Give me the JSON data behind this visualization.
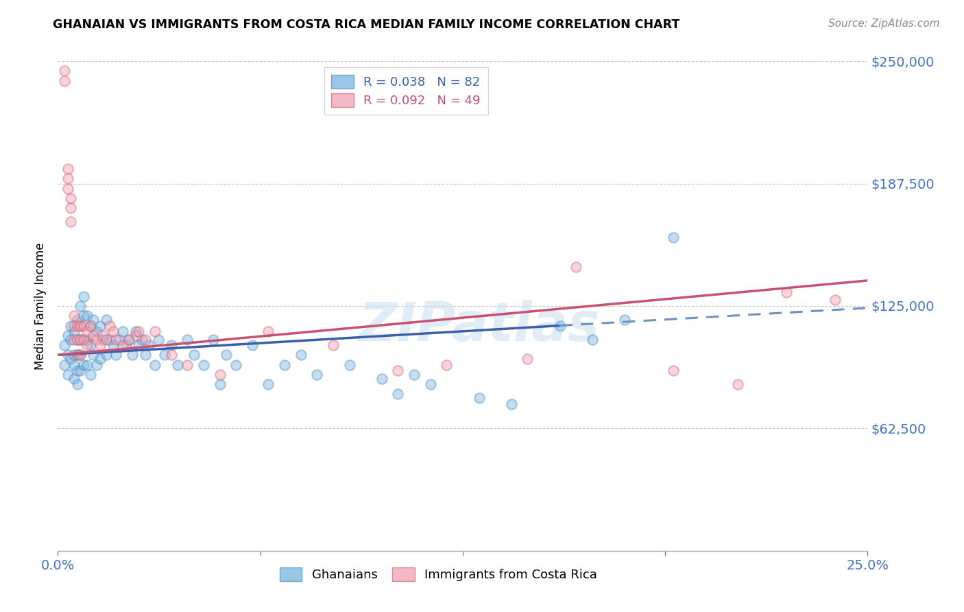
{
  "title": "GHANAIAN VS IMMIGRANTS FROM COSTA RICA MEDIAN FAMILY INCOME CORRELATION CHART",
  "source": "Source: ZipAtlas.com",
  "ylabel": "Median Family Income",
  "xlim": [
    0.0,
    0.25
  ],
  "ylim": [
    0,
    250000
  ],
  "yticks": [
    0,
    62500,
    125000,
    187500,
    250000
  ],
  "ytick_labels": [
    "",
    "$62,500",
    "$125,000",
    "$187,500",
    "$250,000"
  ],
  "background_color": "#ffffff",
  "grid_color": "#c8c8c8",
  "axis_color": "#4472c4",
  "legend_blue_label": "R = 0.038   N = 82",
  "legend_pink_label": "R = 0.092   N = 49",
  "blue_scatter_color": "#7ab5e0",
  "blue_scatter_edge": "#5590c8",
  "pink_scatter_color": "#f4a0b0",
  "pink_scatter_edge": "#d06878",
  "blue_line_color": "#3a5fad",
  "pink_line_color": "#c85070",
  "blue_dashed_color": "#7090c0",
  "scatter_size": 110,
  "scatter_alpha": 0.45,
  "scatter_linewidth": 1.5,
  "blue_line": {
    "x": [
      0.0,
      0.155
    ],
    "y": [
      100000,
      115000
    ]
  },
  "pink_line": {
    "x": [
      0.0,
      0.25
    ],
    "y": [
      100000,
      138000
    ]
  },
  "blue_dashed_line": {
    "x": [
      0.155,
      0.25
    ],
    "y": [
      115000,
      124000
    ]
  },
  "blue_x": [
    0.002,
    0.002,
    0.003,
    0.003,
    0.003,
    0.004,
    0.004,
    0.004,
    0.005,
    0.005,
    0.005,
    0.005,
    0.006,
    0.006,
    0.006,
    0.006,
    0.006,
    0.007,
    0.007,
    0.007,
    0.007,
    0.007,
    0.008,
    0.008,
    0.008,
    0.008,
    0.009,
    0.009,
    0.009,
    0.01,
    0.01,
    0.01,
    0.011,
    0.011,
    0.012,
    0.012,
    0.013,
    0.013,
    0.014,
    0.015,
    0.015,
    0.016,
    0.017,
    0.018,
    0.019,
    0.02,
    0.021,
    0.022,
    0.023,
    0.024,
    0.025,
    0.026,
    0.027,
    0.028,
    0.03,
    0.031,
    0.033,
    0.035,
    0.037,
    0.04,
    0.042,
    0.045,
    0.048,
    0.05,
    0.052,
    0.055,
    0.06,
    0.065,
    0.07,
    0.075,
    0.08,
    0.09,
    0.1,
    0.105,
    0.11,
    0.115,
    0.13,
    0.14,
    0.155,
    0.165,
    0.175,
    0.19
  ],
  "blue_y": [
    105000,
    95000,
    110000,
    100000,
    90000,
    108000,
    98000,
    115000,
    112000,
    100000,
    95000,
    88000,
    118000,
    108000,
    100000,
    92000,
    85000,
    125000,
    115000,
    108000,
    100000,
    92000,
    130000,
    120000,
    108000,
    95000,
    120000,
    108000,
    95000,
    115000,
    105000,
    90000,
    118000,
    100000,
    112000,
    95000,
    115000,
    98000,
    108000,
    118000,
    100000,
    108000,
    105000,
    100000,
    108000,
    112000,
    105000,
    108000,
    100000,
    112000,
    105000,
    108000,
    100000,
    105000,
    95000,
    108000,
    100000,
    105000,
    95000,
    108000,
    100000,
    95000,
    108000,
    85000,
    100000,
    95000,
    105000,
    85000,
    95000,
    100000,
    90000,
    95000,
    88000,
    80000,
    90000,
    85000,
    78000,
    75000,
    115000,
    108000,
    118000,
    160000
  ],
  "pink_x": [
    0.002,
    0.002,
    0.003,
    0.003,
    0.003,
    0.004,
    0.004,
    0.004,
    0.005,
    0.005,
    0.005,
    0.006,
    0.006,
    0.006,
    0.007,
    0.007,
    0.007,
    0.008,
    0.008,
    0.009,
    0.009,
    0.01,
    0.011,
    0.012,
    0.013,
    0.014,
    0.015,
    0.016,
    0.017,
    0.018,
    0.02,
    0.022,
    0.024,
    0.025,
    0.027,
    0.03,
    0.035,
    0.04,
    0.05,
    0.065,
    0.085,
    0.105,
    0.12,
    0.145,
    0.16,
    0.19,
    0.21,
    0.225,
    0.24
  ],
  "pink_y": [
    245000,
    240000,
    195000,
    190000,
    185000,
    180000,
    175000,
    168000,
    120000,
    115000,
    108000,
    115000,
    108000,
    100000,
    115000,
    108000,
    100000,
    115000,
    108000,
    112000,
    105000,
    115000,
    110000,
    108000,
    105000,
    110000,
    108000,
    115000,
    112000,
    108000,
    105000,
    108000,
    110000,
    112000,
    108000,
    112000,
    100000,
    95000,
    90000,
    112000,
    105000,
    92000,
    95000,
    98000,
    145000,
    92000,
    85000,
    132000,
    128000
  ]
}
